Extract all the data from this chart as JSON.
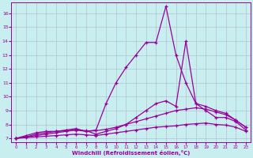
{
  "xlabel": "Windchill (Refroidissement éolien,°C)",
  "xlim": [
    -0.5,
    23.5
  ],
  "ylim": [
    6.7,
    16.8
  ],
  "yticks": [
    7,
    8,
    9,
    10,
    11,
    12,
    13,
    14,
    15,
    16
  ],
  "xticks": [
    0,
    1,
    2,
    3,
    4,
    5,
    6,
    7,
    8,
    9,
    10,
    11,
    12,
    13,
    14,
    15,
    16,
    17,
    18,
    19,
    20,
    21,
    22,
    23
  ],
  "bg_color": "#c8eef0",
  "line_color": "#990099",
  "grid_color": "#b0b8cc",
  "lines": [
    {
      "x": [
        0,
        1,
        2,
        3,
        4,
        5,
        6,
        7,
        8,
        9,
        10,
        11,
        12,
        13,
        14,
        15,
        16,
        17,
        18,
        19,
        20,
        21,
        22,
        23
      ],
      "y": [
        7.0,
        7.2,
        7.4,
        7.5,
        7.5,
        7.6,
        7.7,
        7.5,
        7.6,
        9.5,
        11.0,
        12.1,
        13.0,
        13.9,
        13.9,
        16.5,
        13.0,
        11.0,
        9.5,
        9.0,
        8.5,
        8.5,
        8.2,
        7.6
      ]
    },
    {
      "x": [
        0,
        1,
        2,
        3,
        4,
        5,
        6,
        7,
        8,
        9,
        10,
        11,
        12,
        13,
        14,
        15,
        16,
        17,
        18,
        19,
        20,
        21,
        22,
        23
      ],
      "y": [
        7.0,
        7.1,
        7.3,
        7.4,
        7.5,
        7.55,
        7.6,
        7.55,
        7.3,
        7.5,
        7.7,
        8.0,
        8.5,
        9.0,
        9.5,
        9.7,
        9.3,
        14.0,
        9.5,
        9.3,
        9.0,
        8.8,
        8.3,
        7.8
      ]
    },
    {
      "x": [
        0,
        1,
        2,
        3,
        4,
        5,
        6,
        7,
        8,
        9,
        10,
        11,
        12,
        13,
        14,
        15,
        16,
        17,
        18,
        19,
        20,
        21,
        22,
        23
      ],
      "y": [
        7.0,
        7.1,
        7.2,
        7.3,
        7.4,
        7.5,
        7.6,
        7.5,
        7.55,
        7.65,
        7.8,
        8.0,
        8.2,
        8.4,
        8.6,
        8.8,
        9.0,
        9.1,
        9.2,
        9.1,
        8.9,
        8.7,
        8.3,
        7.8
      ]
    },
    {
      "x": [
        0,
        1,
        2,
        3,
        4,
        5,
        6,
        7,
        8,
        9,
        10,
        11,
        12,
        13,
        14,
        15,
        16,
        17,
        18,
        19,
        20,
        21,
        22,
        23
      ],
      "y": [
        7.0,
        7.05,
        7.1,
        7.15,
        7.2,
        7.25,
        7.3,
        7.25,
        7.2,
        7.3,
        7.4,
        7.5,
        7.6,
        7.7,
        7.8,
        7.85,
        7.9,
        8.0,
        8.05,
        8.1,
        8.0,
        7.95,
        7.8,
        7.5
      ]
    }
  ]
}
